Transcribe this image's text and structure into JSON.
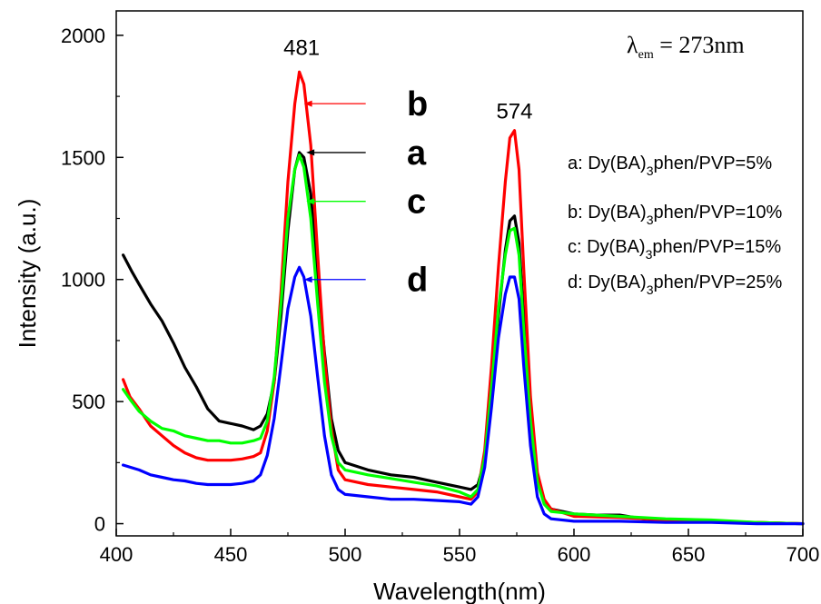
{
  "chart_data": {
    "type": "line",
    "xlabel": "Wavelength(nm)",
    "ylabel": "Intensity (a.u.)",
    "xlim": [
      400,
      700
    ],
    "ylim": [
      -50,
      2100
    ],
    "xticks": [
      400,
      450,
      500,
      550,
      600,
      650,
      700
    ],
    "yticks": [
      0,
      500,
      1000,
      1500,
      2000
    ],
    "grid": false,
    "annotation": {
      "symbol": "λ",
      "subscript": "em",
      "text": " = 273nm"
    },
    "peak_labels": [
      {
        "text": "481",
        "x": 481,
        "y": 1920
      },
      {
        "text": "574",
        "x": 574,
        "y": 1660
      }
    ],
    "legend": {
      "placement": "right",
      "entries": [
        {
          "prefix": "a: Dy(BA)",
          "sub": "3",
          "suffix": "phen/PVP=5%"
        },
        {
          "prefix": "b: Dy(BA)",
          "sub": "3",
          "suffix": "phen/PVP=10%"
        },
        {
          "prefix": "c: Dy(BA)",
          "sub": "3",
          "suffix": "phen/PVP=15%"
        },
        {
          "prefix": "d: Dy(BA)",
          "sub": "3",
          "suffix": "phen/PVP=25%"
        }
      ]
    },
    "series": [
      {
        "name": "a",
        "color": "#000000",
        "arrow": {
          "tip_x": 483,
          "tail_x": 509,
          "y": 1520
        },
        "letter_pos": {
          "x": 527,
          "y": 1520
        },
        "points": [
          [
            403,
            1100
          ],
          [
            407,
            1030
          ],
          [
            410,
            980
          ],
          [
            415,
            900
          ],
          [
            420,
            830
          ],
          [
            425,
            740
          ],
          [
            430,
            640
          ],
          [
            435,
            560
          ],
          [
            440,
            470
          ],
          [
            445,
            420
          ],
          [
            450,
            410
          ],
          [
            455,
            400
          ],
          [
            460,
            385
          ],
          [
            463,
            400
          ],
          [
            466,
            450
          ],
          [
            469,
            580
          ],
          [
            472,
            850
          ],
          [
            475,
            1200
          ],
          [
            478,
            1450
          ],
          [
            480,
            1520
          ],
          [
            482,
            1500
          ],
          [
            485,
            1350
          ],
          [
            488,
            1000
          ],
          [
            491,
            700
          ],
          [
            494,
            430
          ],
          [
            497,
            300
          ],
          [
            500,
            250
          ],
          [
            510,
            220
          ],
          [
            520,
            200
          ],
          [
            530,
            190
          ],
          [
            540,
            170
          ],
          [
            550,
            150
          ],
          [
            555,
            140
          ],
          [
            558,
            160
          ],
          [
            561,
            260
          ],
          [
            564,
            520
          ],
          [
            567,
            850
          ],
          [
            570,
            1120
          ],
          [
            572,
            1240
          ],
          [
            574,
            1260
          ],
          [
            576,
            1150
          ],
          [
            578,
            850
          ],
          [
            581,
            450
          ],
          [
            584,
            180
          ],
          [
            587,
            90
          ],
          [
            590,
            60
          ],
          [
            600,
            40
          ],
          [
            610,
            35
          ],
          [
            620,
            35
          ],
          [
            630,
            20
          ],
          [
            640,
            10
          ],
          [
            660,
            8
          ],
          [
            680,
            5
          ],
          [
            700,
            0
          ]
        ]
      },
      {
        "name": "b",
        "color": "#ff0000",
        "arrow": {
          "tip_x": 482,
          "tail_x": 509,
          "y": 1720
        },
        "letter_pos": {
          "x": 527,
          "y": 1720
        },
        "points": [
          [
            403,
            590
          ],
          [
            406,
            520
          ],
          [
            410,
            470
          ],
          [
            415,
            400
          ],
          [
            420,
            360
          ],
          [
            425,
            320
          ],
          [
            430,
            290
          ],
          [
            435,
            270
          ],
          [
            440,
            260
          ],
          [
            445,
            260
          ],
          [
            450,
            260
          ],
          [
            455,
            265
          ],
          [
            460,
            275
          ],
          [
            463,
            290
          ],
          [
            466,
            380
          ],
          [
            469,
            580
          ],
          [
            472,
            950
          ],
          [
            475,
            1400
          ],
          [
            478,
            1720
          ],
          [
            480,
            1850
          ],
          [
            482,
            1800
          ],
          [
            485,
            1550
          ],
          [
            488,
            1100
          ],
          [
            491,
            680
          ],
          [
            494,
            390
          ],
          [
            497,
            220
          ],
          [
            500,
            180
          ],
          [
            510,
            160
          ],
          [
            520,
            150
          ],
          [
            530,
            140
          ],
          [
            540,
            130
          ],
          [
            550,
            110
          ],
          [
            555,
            100
          ],
          [
            558,
            130
          ],
          [
            561,
            300
          ],
          [
            564,
            650
          ],
          [
            567,
            1050
          ],
          [
            570,
            1400
          ],
          [
            572,
            1580
          ],
          [
            574,
            1610
          ],
          [
            576,
            1450
          ],
          [
            578,
            1050
          ],
          [
            581,
            520
          ],
          [
            584,
            210
          ],
          [
            587,
            100
          ],
          [
            590,
            60
          ],
          [
            600,
            30
          ],
          [
            620,
            25
          ],
          [
            640,
            15
          ],
          [
            660,
            10
          ],
          [
            680,
            5
          ],
          [
            700,
            0
          ]
        ]
      },
      {
        "name": "c",
        "color": "#00ff00",
        "arrow": {
          "tip_x": 483,
          "tail_x": 509,
          "y": 1320
        },
        "letter_pos": {
          "x": 527,
          "y": 1320
        },
        "points": [
          [
            403,
            550
          ],
          [
            406,
            510
          ],
          [
            410,
            460
          ],
          [
            415,
            420
          ],
          [
            420,
            390
          ],
          [
            425,
            380
          ],
          [
            430,
            360
          ],
          [
            435,
            350
          ],
          [
            440,
            340
          ],
          [
            445,
            340
          ],
          [
            450,
            330
          ],
          [
            455,
            330
          ],
          [
            460,
            340
          ],
          [
            463,
            350
          ],
          [
            466,
            420
          ],
          [
            469,
            600
          ],
          [
            472,
            900
          ],
          [
            475,
            1250
          ],
          [
            478,
            1450
          ],
          [
            480,
            1510
          ],
          [
            482,
            1460
          ],
          [
            485,
            1250
          ],
          [
            488,
            900
          ],
          [
            491,
            580
          ],
          [
            494,
            360
          ],
          [
            497,
            250
          ],
          [
            500,
            220
          ],
          [
            510,
            200
          ],
          [
            520,
            185
          ],
          [
            530,
            170
          ],
          [
            540,
            155
          ],
          [
            550,
            130
          ],
          [
            555,
            110
          ],
          [
            558,
            140
          ],
          [
            561,
            270
          ],
          [
            564,
            560
          ],
          [
            567,
            880
          ],
          [
            570,
            1100
          ],
          [
            572,
            1200
          ],
          [
            574,
            1210
          ],
          [
            576,
            1100
          ],
          [
            578,
            800
          ],
          [
            581,
            420
          ],
          [
            584,
            170
          ],
          [
            587,
            80
          ],
          [
            590,
            50
          ],
          [
            600,
            40
          ],
          [
            620,
            30
          ],
          [
            640,
            20
          ],
          [
            660,
            15
          ],
          [
            680,
            5
          ],
          [
            700,
            0
          ]
        ]
      },
      {
        "name": "d",
        "color": "#0000ff",
        "arrow": {
          "tip_x": 482,
          "tail_x": 509,
          "y": 1000
        },
        "letter_pos": {
          "x": 527,
          "y": 1000
        },
        "points": [
          [
            403,
            240
          ],
          [
            410,
            220
          ],
          [
            415,
            200
          ],
          [
            420,
            190
          ],
          [
            425,
            180
          ],
          [
            430,
            175
          ],
          [
            435,
            165
          ],
          [
            440,
            160
          ],
          [
            445,
            160
          ],
          [
            450,
            160
          ],
          [
            455,
            165
          ],
          [
            460,
            175
          ],
          [
            463,
            200
          ],
          [
            466,
            280
          ],
          [
            469,
            430
          ],
          [
            472,
            650
          ],
          [
            475,
            880
          ],
          [
            478,
            1010
          ],
          [
            480,
            1050
          ],
          [
            482,
            1010
          ],
          [
            485,
            850
          ],
          [
            488,
            600
          ],
          [
            491,
            360
          ],
          [
            494,
            200
          ],
          [
            497,
            140
          ],
          [
            500,
            120
          ],
          [
            510,
            110
          ],
          [
            520,
            100
          ],
          [
            530,
            100
          ],
          [
            540,
            95
          ],
          [
            550,
            90
          ],
          [
            555,
            80
          ],
          [
            558,
            110
          ],
          [
            561,
            230
          ],
          [
            564,
            480
          ],
          [
            567,
            760
          ],
          [
            570,
            940
          ],
          [
            572,
            1010
          ],
          [
            574,
            1010
          ],
          [
            576,
            920
          ],
          [
            578,
            650
          ],
          [
            581,
            320
          ],
          [
            584,
            110
          ],
          [
            587,
            40
          ],
          [
            590,
            20
          ],
          [
            600,
            10
          ],
          [
            620,
            10
          ],
          [
            640,
            5
          ],
          [
            660,
            5
          ],
          [
            680,
            0
          ],
          [
            700,
            0
          ]
        ]
      }
    ]
  }
}
